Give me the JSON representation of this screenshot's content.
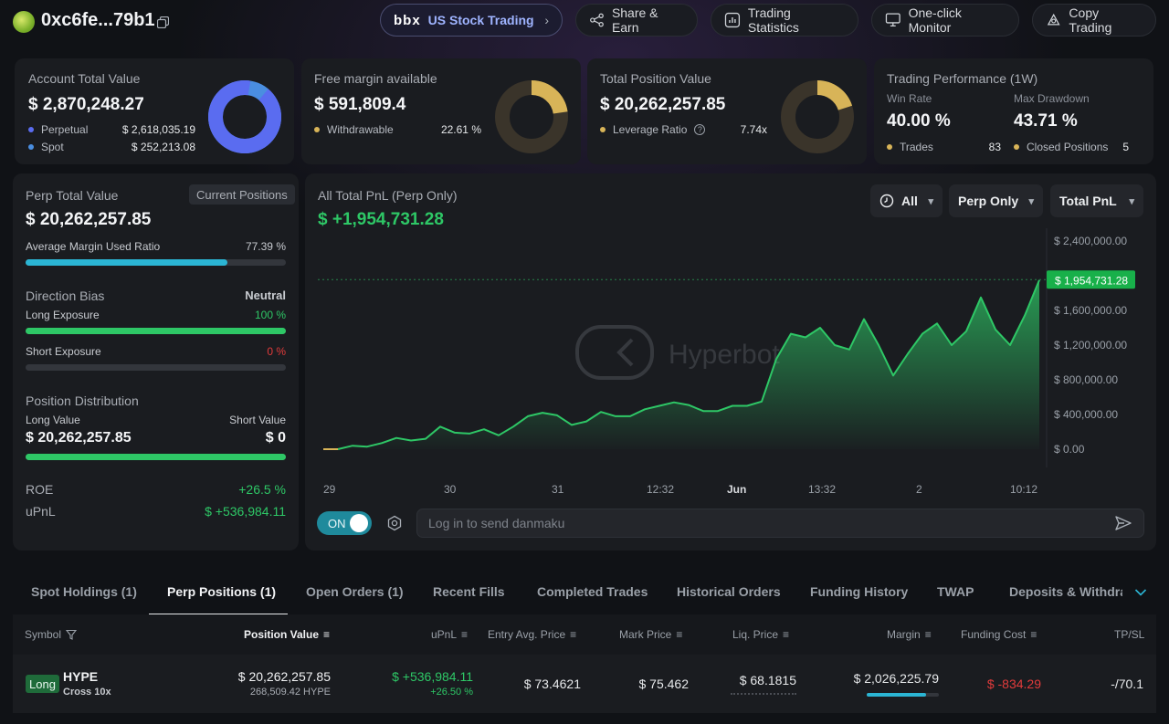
{
  "header": {
    "address": "0xc6fe...79b1",
    "nav": [
      {
        "label": "US Stock Trading",
        "logo": "bbx"
      },
      {
        "label": "Share & Earn"
      },
      {
        "label": "Trading Statistics"
      },
      {
        "label": "One-click Monitor"
      },
      {
        "label": "Copy Trading"
      }
    ]
  },
  "account": {
    "title": "Account Total Value",
    "value": "$ 2,870,248.27",
    "perp_label": "Perpetual",
    "perp_value": "$ 2,618,035.19",
    "spot_label": "Spot",
    "spot_value": "$ 252,213.08",
    "perp_fraction": 0.912
  },
  "margin": {
    "title": "Free margin available",
    "value": "$ 591,809.4",
    "withdrawable_label": "Withdrawable",
    "withdrawable_pct": "22.61 %",
    "fraction": 0.2261
  },
  "position": {
    "title": "Total Position Value",
    "value": "$ 20,262,257.85",
    "leverage_label": "Leverage Ratio",
    "leverage_value": "7.74x",
    "fraction": 0.2
  },
  "performance": {
    "title": "Trading Performance (1W)",
    "win_rate_label": "Win Rate",
    "win_rate": "40.00 %",
    "drawdown_label": "Max Drawdown",
    "drawdown": "43.71 %",
    "trades_label": "Trades",
    "trades": "83",
    "closed_label": "Closed Positions",
    "closed": "5"
  },
  "perp": {
    "title": "Perp Total Value",
    "badge": "Current Positions",
    "value": "$ 20,262,257.85",
    "margin_ratio_label": "Average Margin Used Ratio",
    "margin_ratio": "77.39 %",
    "margin_ratio_fraction": 0.7739,
    "bias_label": "Direction Bias",
    "bias_value": "Neutral",
    "long_label": "Long Exposure",
    "long_pct": "100 %",
    "long_fraction": 1.0,
    "short_label": "Short Exposure",
    "short_pct": "0 %",
    "short_fraction": 0.0,
    "dist_label": "Position Distribution",
    "long_value_label": "Long Value",
    "short_value_label": "Short Value",
    "long_value": "$ 20,262,257.85",
    "short_value": "$ 0",
    "dist_fraction": 1.0,
    "roe_label": "ROE",
    "roe": "+26.5 %",
    "upnl_label": "uPnL",
    "upnl": "$ +536,984.11"
  },
  "pnl": {
    "title": "All Total PnL (Perp Only)",
    "value": "$ +1,954,731.28",
    "filters": [
      "All",
      "Perp Only",
      "Total PnL"
    ],
    "toggle": "ON",
    "danmaku_placeholder": "Log in to send danmaku",
    "watermark": "Hyperbot",
    "current_tag": "$ 1,954,731.28"
  },
  "chart_data": {
    "type": "area",
    "title": "All Total PnL (Perp Only)",
    "x_ticks": [
      "29",
      "30",
      "31",
      "12:32",
      "Jun",
      "13:32",
      "2",
      "10:12"
    ],
    "y_ticks": [
      "$ 2,400,000.00",
      "$ 1,600,000.00",
      "$ 1,200,000.00",
      "$ 800,000.00",
      "$ 400,000.00",
      "$ 0.00"
    ],
    "ylim": [
      0,
      2400000
    ],
    "current": 1954731.28,
    "values": [
      0,
      0,
      40000,
      30000,
      70000,
      130000,
      100000,
      120000,
      260000,
      190000,
      180000,
      230000,
      160000,
      260000,
      380000,
      420000,
      390000,
      280000,
      320000,
      430000,
      380000,
      380000,
      460000,
      500000,
      540000,
      510000,
      440000,
      440000,
      500000,
      500000,
      550000,
      1040000,
      1330000,
      1290000,
      1400000,
      1200000,
      1150000,
      1500000,
      1200000,
      850000,
      1100000,
      1330000,
      1450000,
      1200000,
      1360000,
      1750000,
      1380000,
      1200000,
      1540000,
      1950000
    ]
  },
  "tabs": [
    "Spot Holdings (1)",
    "Perp Positions (1)",
    "Open Orders (1)",
    "Recent Fills",
    "Completed Trades",
    "Historical Orders",
    "Funding History",
    "TWAP",
    "Deposits & Withdraw"
  ],
  "table": {
    "headers": [
      "Symbol",
      "Position Value",
      "uPnL",
      "Entry Avg. Price",
      "Mark Price",
      "Liq. Price",
      "Margin",
      "Funding Cost",
      "TP/SL"
    ],
    "row": {
      "side": "Long",
      "symbol": "HYPE",
      "leverage": "Cross 10x",
      "position_value": "$ 20,262,257.85",
      "position_size": "268,509.42 HYPE",
      "upnl": "$ +536,984.11",
      "upnl_pct": "+26.50 %",
      "entry": "$ 73.4621",
      "mark": "$ 75.462",
      "liq": "$ 68.1815",
      "margin": "$ 2,026,225.79",
      "margin_fraction": 0.82,
      "funding": "$ -834.29",
      "tpsl": "-/70.1"
    }
  },
  "colors": {
    "accent_green": "#2ec766",
    "accent_blue": "#5a6cf0",
    "bar_cyan": "#2bb5d4",
    "gold": "#d8b458",
    "red": "#e23b3b"
  }
}
